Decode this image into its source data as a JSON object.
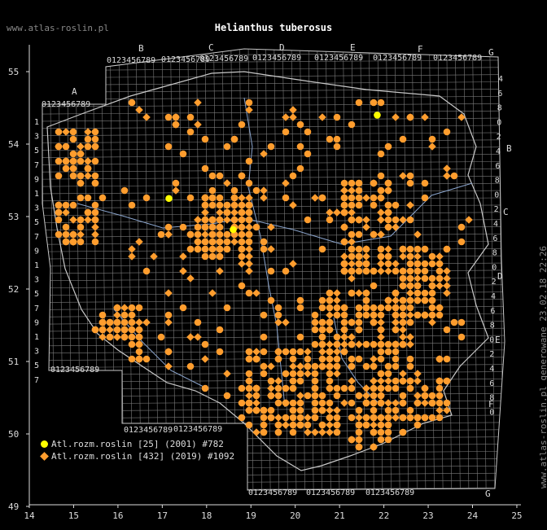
{
  "site_url": "www.atlas-roslin.pl",
  "title": "Helianthus tuberosus",
  "side_note": "www.atlas-roslin.pl generowane 23.02.18 22:26",
  "colors": {
    "background": "#000000",
    "grid": "#7a7a7a",
    "border": "#c8c8c8",
    "river": "#8aa4cc",
    "old_records": "#ffff00",
    "new_records": "#ff9d2e"
  },
  "axes": {
    "lon_ticks": [
      "14",
      "15",
      "16",
      "17",
      "18",
      "19",
      "20",
      "21",
      "22",
      "23",
      "24",
      "25"
    ],
    "lat_ticks": [
      "55",
      "54",
      "53",
      "52",
      "51",
      "50",
      "49"
    ]
  },
  "grid_letters": [
    "A",
    "B",
    "C",
    "D",
    "E",
    "F",
    "G"
  ],
  "legend": [
    {
      "label": "Atl.rozm.roslin [25] (2001) #782",
      "color": "#ffff00",
      "shape": "circle",
      "icon": "circle-icon"
    },
    {
      "label": "Atl.rozm.roslin [432] (2019) #1092",
      "color": "#ff9d2e",
      "shape": "diamond",
      "icon": "diamond-icon"
    }
  ],
  "records": {
    "old_2001": [
      [
        17.15,
        53.25
      ],
      [
        18.6,
        52.82
      ],
      [
        21.85,
        54.4
      ]
    ],
    "new_2019_clusters": [
      {
        "lon": [
          14.6,
          15.6
        ],
        "lat": [
          52.6,
          54.2
        ],
        "n": 85
      },
      {
        "lon": [
          17.8,
          19.0
        ],
        "lat": [
          52.4,
          53.3
        ],
        "n": 120
      },
      {
        "lon": [
          21.0,
          22.2
        ],
        "lat": [
          52.2,
          53.5
        ],
        "n": 110
      },
      {
        "lon": [
          22.3,
          23.5
        ],
        "lat": [
          51.6,
          52.6
        ],
        "n": 70
      },
      {
        "lon": [
          20.4,
          22.6
        ],
        "lat": [
          50.9,
          52.0
        ],
        "n": 160
      },
      {
        "lon": [
          18.8,
          21.0
        ],
        "lat": [
          50.0,
          51.2
        ],
        "n": 150
      },
      {
        "lon": [
          21.2,
          23.6
        ],
        "lat": [
          49.8,
          50.8
        ],
        "n": 130
      },
      {
        "lon": [
          15.4,
          16.6
        ],
        "lat": [
          50.9,
          51.8
        ],
        "n": 55
      },
      {
        "lon": [
          16.0,
          24.0
        ],
        "lat": [
          50.0,
          54.6
        ],
        "n": 260
      }
    ]
  }
}
